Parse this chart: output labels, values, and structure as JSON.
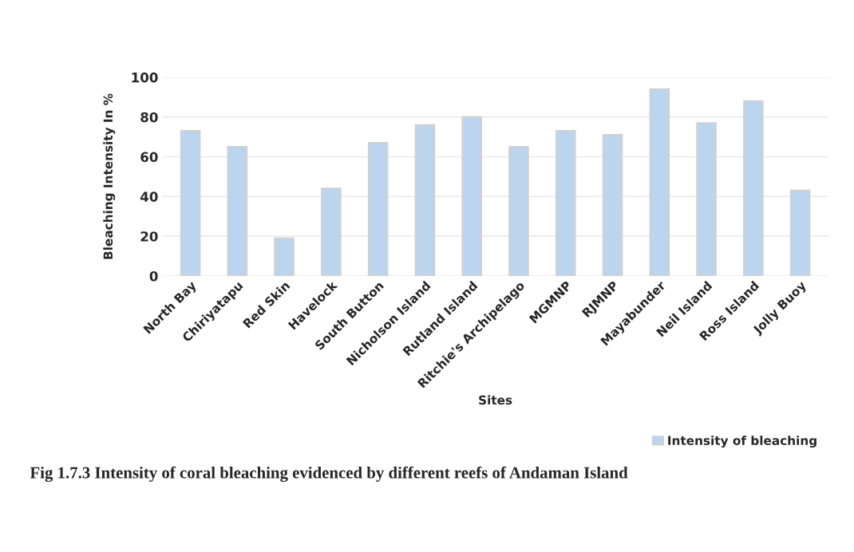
{
  "chart_data": {
    "type": "bar",
    "categories": [
      "North Bay",
      "Chiriyatapu",
      "Red Skin",
      "Havelock",
      "South Button",
      "Nicholson Island",
      "Rutland Island",
      "Ritchie's Archipelago",
      "MGMNP",
      "RJMNP",
      "Mayabunder",
      "Neil Island",
      "Ross Island",
      "Jolly Buoy"
    ],
    "series": [
      {
        "name": "Intensity of bleaching",
        "color": "#bcd5ee",
        "values": [
          73,
          65,
          19,
          44,
          67,
          76,
          80,
          65,
          73,
          71,
          94,
          77,
          88,
          43
        ]
      }
    ],
    "xlabel": "Sites",
    "ylabel": "Bleaching Intensity In %",
    "ylim": [
      0,
      100
    ],
    "yticks": [
      0,
      20,
      40,
      60,
      80,
      100
    ],
    "grid": "y",
    "legend": "bottom right",
    "annotations": [
      "Fig 1.7.3 Intensity of coral bleaching evidenced by different reefs of Andaman Island"
    ]
  }
}
